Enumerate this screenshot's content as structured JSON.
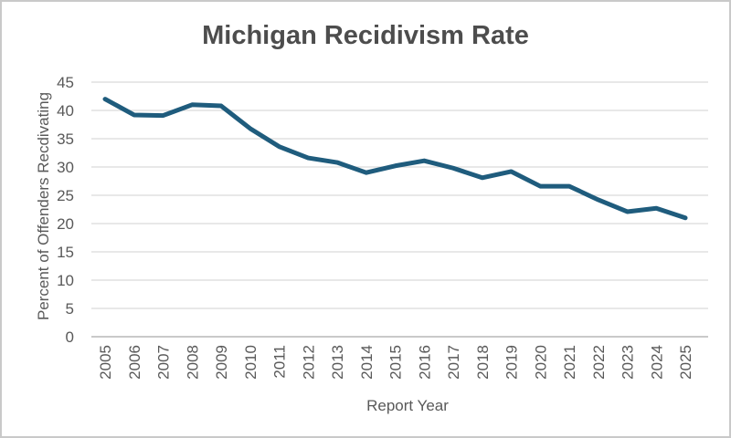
{
  "window": {
    "background": "#ffffff",
    "border_color": "#c9c9c9"
  },
  "chart_data": {
    "type": "line",
    "title": "Michigan Recidivism Rate",
    "xlabel": "Report Year",
    "ylabel": "Percent of Offenders Recdivating",
    "categories": [
      "2005",
      "2006",
      "2007",
      "2008",
      "2009",
      "2010",
      "2011",
      "2012",
      "2013",
      "2014",
      "2015",
      "2016",
      "2017",
      "2018",
      "2019",
      "2020",
      "2021",
      "2022",
      "2023",
      "2024",
      "2025"
    ],
    "values": [
      42,
      39.2,
      39.1,
      41,
      40.8,
      36.8,
      33.6,
      31.6,
      30.8,
      29,
      30.2,
      31.1,
      29.8,
      28.1,
      29.2,
      26.6,
      26.6,
      24.2,
      22.1,
      22.7,
      21
    ],
    "ylim": [
      0,
      45
    ],
    "yticks": [
      0,
      5,
      10,
      15,
      20,
      25,
      30,
      35,
      40,
      45
    ],
    "grid": true,
    "legend_position": "none",
    "colors": {
      "line": "#1f5c7d",
      "gridline": "#d9d9d9",
      "axis_line": "#b7b7b7",
      "tick_label": "#595959",
      "title": "#4d4d4d"
    },
    "line_width": 5
  }
}
